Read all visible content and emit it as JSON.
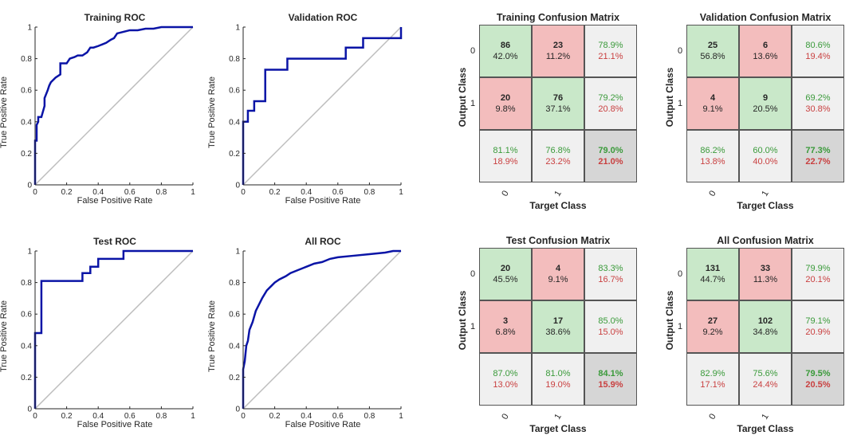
{
  "chart_data": [
    {
      "type": "line",
      "title": "Training ROC",
      "xlabel": "False Positive Rate",
      "ylabel": "True Positive Rate",
      "xlim": [
        0,
        1
      ],
      "ylim": [
        0,
        1
      ],
      "xticks": [
        "0",
        "0.2",
        "0.4",
        "0.6",
        "0.8",
        "1"
      ],
      "yticks": [
        "0",
        "0.2",
        "0.4",
        "0.6",
        "0.8",
        "1"
      ],
      "curve": {
        "x": [
          0,
          0,
          0.01,
          0.01,
          0.02,
          0.02,
          0.04,
          0.06,
          0.06,
          0.08,
          0.09,
          0.1,
          0.13,
          0.16,
          0.16,
          0.2,
          0.22,
          0.25,
          0.27,
          0.3,
          0.33,
          0.35,
          0.37,
          0.4,
          0.45,
          0.48,
          0.5,
          0.52,
          0.56,
          0.6,
          0.65,
          0.7,
          0.75,
          0.8,
          1
        ],
        "y": [
          0,
          0.28,
          0.28,
          0.38,
          0.4,
          0.43,
          0.43,
          0.5,
          0.55,
          0.6,
          0.63,
          0.65,
          0.68,
          0.7,
          0.77,
          0.77,
          0.8,
          0.81,
          0.82,
          0.82,
          0.84,
          0.87,
          0.87,
          0.88,
          0.9,
          0.92,
          0.93,
          0.96,
          0.97,
          0.98,
          0.98,
          0.99,
          0.99,
          1,
          1
        ]
      },
      "diagonal": {
        "x": [
          0,
          1
        ],
        "y": [
          0,
          1
        ]
      }
    },
    {
      "type": "line",
      "title": "Validation ROC",
      "xlabel": "False Positive Rate",
      "ylabel": "True Positive Rate",
      "xlim": [
        0,
        1
      ],
      "ylim": [
        0,
        1
      ],
      "xticks": [
        "0",
        "0.2",
        "0.4",
        "0.6",
        "0.8",
        "1"
      ],
      "yticks": [
        "0",
        "0.2",
        "0.4",
        "0.6",
        "0.8",
        "1"
      ],
      "curve": {
        "x": [
          0,
          0,
          0.03,
          0.03,
          0.07,
          0.07,
          0.14,
          0.14,
          0.28,
          0.28,
          0.65,
          0.65,
          0.76,
          0.76,
          1,
          1,
          1
        ],
        "y": [
          0,
          0.4,
          0.4,
          0.47,
          0.47,
          0.53,
          0.53,
          0.73,
          0.73,
          0.8,
          0.8,
          0.87,
          0.87,
          0.93,
          0.93,
          0.93,
          1
        ]
      },
      "diagonal": {
        "x": [
          0,
          1
        ],
        "y": [
          0,
          1
        ]
      }
    },
    {
      "type": "line",
      "title": "Test ROC",
      "xlabel": "False Positive Rate",
      "ylabel": "True Positive Rate",
      "xlim": [
        0,
        1
      ],
      "ylim": [
        0,
        1
      ],
      "xticks": [
        "0",
        "0.2",
        "0.4",
        "0.6",
        "0.8",
        "1"
      ],
      "yticks": [
        "0",
        "0.2",
        "0.4",
        "0.6",
        "0.8",
        "1"
      ],
      "curve": {
        "x": [
          0,
          0,
          0.04,
          0.04,
          0.3,
          0.3,
          0.35,
          0.35,
          0.4,
          0.4,
          0.56,
          0.56,
          1
        ],
        "y": [
          0,
          0.48,
          0.48,
          0.81,
          0.81,
          0.86,
          0.86,
          0.9,
          0.9,
          0.95,
          0.95,
          1,
          1
        ]
      },
      "diagonal": {
        "x": [
          0,
          1
        ],
        "y": [
          0,
          1
        ]
      }
    },
    {
      "type": "line",
      "title": "All ROC",
      "xlabel": "False Positive Rate",
      "ylabel": "True Positive Rate",
      "xlim": [
        0,
        1
      ],
      "ylim": [
        0,
        1
      ],
      "xticks": [
        "0",
        "0.2",
        "0.4",
        "0.6",
        "0.8",
        "1"
      ],
      "yticks": [
        "0",
        "0.2",
        "0.4",
        "0.6",
        "0.8",
        "1"
      ],
      "curve": {
        "x": [
          0,
          0,
          0.01,
          0.02,
          0.03,
          0.04,
          0.06,
          0.08,
          0.1,
          0.12,
          0.15,
          0.18,
          0.2,
          0.23,
          0.27,
          0.3,
          0.35,
          0.4,
          0.45,
          0.5,
          0.55,
          0.6,
          0.7,
          0.8,
          0.9,
          0.95,
          1
        ],
        "y": [
          0,
          0.25,
          0.3,
          0.4,
          0.43,
          0.5,
          0.55,
          0.62,
          0.66,
          0.7,
          0.75,
          0.78,
          0.8,
          0.82,
          0.84,
          0.86,
          0.88,
          0.9,
          0.92,
          0.93,
          0.95,
          0.96,
          0.97,
          0.98,
          0.99,
          1,
          1
        ]
      },
      "diagonal": {
        "x": [
          0,
          1
        ],
        "y": [
          0,
          1
        ]
      }
    },
    {
      "type": "table",
      "title": "Training Confusion Matrix",
      "xlabel": "Target Class",
      "ylabel": "Output Class",
      "row_labels": [
        "0",
        "1"
      ],
      "col_labels": [
        "0",
        "1"
      ],
      "cells": [
        [
          {
            "count": "86",
            "pct": "42.0%"
          },
          {
            "count": "23",
            "pct": "11.2%"
          }
        ],
        [
          {
            "count": "20",
            "pct": "9.8%"
          },
          {
            "count": "76",
            "pct": "37.1%"
          }
        ]
      ],
      "row_summary": [
        [
          "78.9%",
          "21.1%"
        ],
        [
          "79.2%",
          "20.8%"
        ]
      ],
      "col_summary": [
        [
          "81.1%",
          "18.9%"
        ],
        [
          "76.8%",
          "23.2%"
        ]
      ],
      "total": [
        "79.0%",
        "21.0%"
      ]
    },
    {
      "type": "table",
      "title": "Validation Confusion Matrix",
      "xlabel": "Target Class",
      "ylabel": "Output Class",
      "row_labels": [
        "0",
        "1"
      ],
      "col_labels": [
        "0",
        "1"
      ],
      "cells": [
        [
          {
            "count": "25",
            "pct": "56.8%"
          },
          {
            "count": "6",
            "pct": "13.6%"
          }
        ],
        [
          {
            "count": "4",
            "pct": "9.1%"
          },
          {
            "count": "9",
            "pct": "20.5%"
          }
        ]
      ],
      "row_summary": [
        [
          "80.6%",
          "19.4%"
        ],
        [
          "69.2%",
          "30.8%"
        ]
      ],
      "col_summary": [
        [
          "86.2%",
          "13.8%"
        ],
        [
          "60.0%",
          "40.0%"
        ]
      ],
      "total": [
        "77.3%",
        "22.7%"
      ]
    },
    {
      "type": "table",
      "title": "Test Confusion Matrix",
      "xlabel": "Target Class",
      "ylabel": "Output Class",
      "row_labels": [
        "0",
        "1"
      ],
      "col_labels": [
        "0",
        "1"
      ],
      "cells": [
        [
          {
            "count": "20",
            "pct": "45.5%"
          },
          {
            "count": "4",
            "pct": "9.1%"
          }
        ],
        [
          {
            "count": "3",
            "pct": "6.8%"
          },
          {
            "count": "17",
            "pct": "38.6%"
          }
        ]
      ],
      "row_summary": [
        [
          "83.3%",
          "16.7%"
        ],
        [
          "85.0%",
          "15.0%"
        ]
      ],
      "col_summary": [
        [
          "87.0%",
          "13.0%"
        ],
        [
          "81.0%",
          "19.0%"
        ]
      ],
      "total": [
        "84.1%",
        "15.9%"
      ]
    },
    {
      "type": "table",
      "title": "All Confusion Matrix",
      "xlabel": "Target Class",
      "ylabel": "Output Class",
      "row_labels": [
        "0",
        "1"
      ],
      "col_labels": [
        "0",
        "1"
      ],
      "cells": [
        [
          {
            "count": "131",
            "pct": "44.7%"
          },
          {
            "count": "33",
            "pct": "11.3%"
          }
        ],
        [
          {
            "count": "27",
            "pct": "9.2%"
          },
          {
            "count": "102",
            "pct": "34.8%"
          }
        ]
      ],
      "row_summary": [
        [
          "79.9%",
          "20.1%"
        ],
        [
          "79.1%",
          "20.9%"
        ]
      ],
      "col_summary": [
        [
          "82.9%",
          "17.1%"
        ],
        [
          "75.6%",
          "24.4%"
        ]
      ],
      "total": [
        "79.5%",
        "20.5%"
      ]
    }
  ],
  "colors": {
    "roc_line": "#0a14a6",
    "diagonal": "#bdbdbd",
    "correct": "#c9e8c9",
    "wrong": "#f3bdbd",
    "summary": "#f0f0f0",
    "total": "#d6d6d6",
    "pct_good": "#3a9a3a",
    "pct_bad": "#c94040"
  }
}
